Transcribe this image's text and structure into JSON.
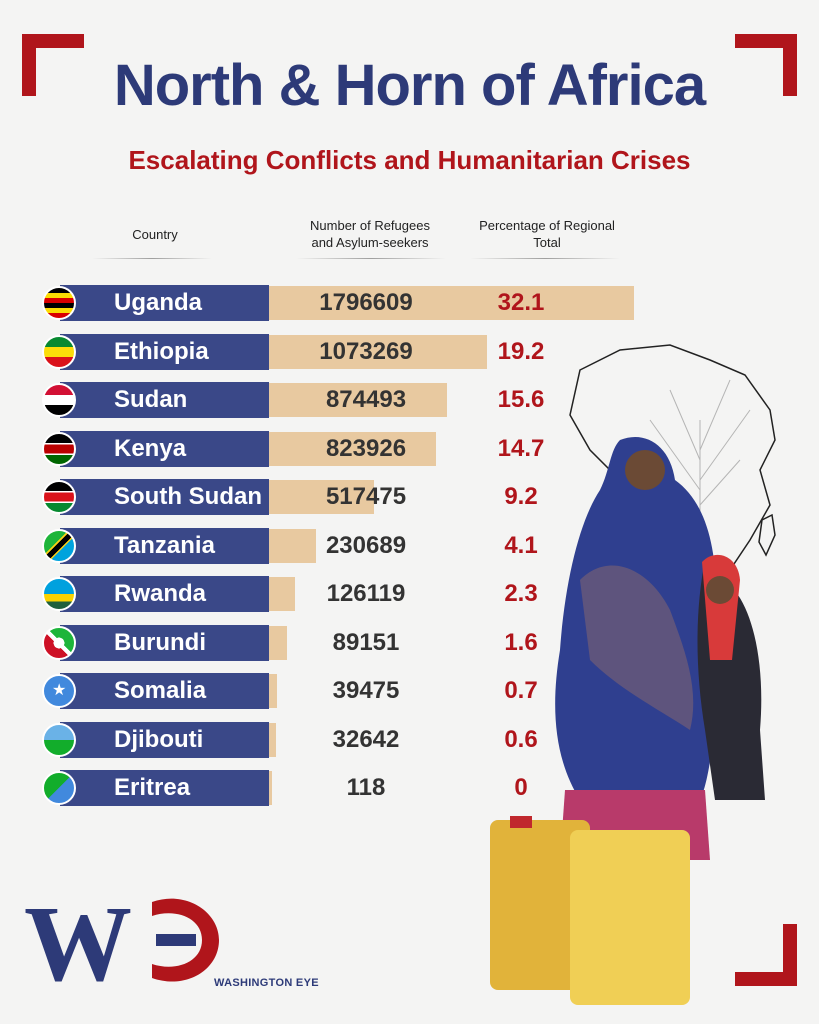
{
  "header": {
    "title": "North & Horn of Africa",
    "subtitle": "Escalating Conflicts and Humanitarian Crises"
  },
  "table": {
    "columns": [
      "Country",
      "Number of Refugees and Asylum-seekers",
      "Percentage of Regional Total"
    ],
    "column_lines": {
      "refugees": [
        "Number of Refugees",
        "and Asylum-seekers"
      ],
      "percentage": [
        "Percentage of Regional",
        "Total"
      ]
    }
  },
  "chart_data": {
    "type": "bar",
    "title": "North & Horn of Africa",
    "subtitle": "Escalating Conflicts and Humanitarian Crises",
    "xlabel": "Number of Refugees and Asylum-seekers",
    "ylabel": "Country",
    "categories": [
      "Uganda",
      "Ethiopia",
      "Sudan",
      "Kenya",
      "South Sudan",
      "Tanzania",
      "Rwanda",
      "Burundi",
      "Somalia",
      "Djibouti",
      "Eritrea"
    ],
    "values": [
      1796609,
      1073269,
      874493,
      823926,
      517475,
      230689,
      126119,
      89151,
      39475,
      32642,
      118
    ],
    "percentages": [
      "32.1",
      "19.2",
      "15.6",
      "14.7",
      "9.2",
      "4.1",
      "2.3",
      "1.6",
      "0.7",
      "0.6",
      "0"
    ],
    "value_labels": [
      "1796609",
      "1073269",
      "874493",
      "823926",
      "517475",
      "230689",
      "126119",
      "89151",
      "39475",
      "32642",
      "118"
    ],
    "xlim": [
      0,
      1796609
    ]
  },
  "flags": [
    "uganda-flag-icon",
    "ethiopia-flag-icon",
    "sudan-flag-icon",
    "kenya-flag-icon",
    "south-sudan-flag-icon",
    "tanzania-flag-icon",
    "rwanda-flag-icon",
    "burundi-flag-icon",
    "somalia-flag-icon",
    "djibouti-flag-icon",
    "eritrea-flag-icon"
  ],
  "logo": {
    "text": "WASHINGTON EYE",
    "letters": "WE"
  },
  "colors": {
    "navy": "#3a4888",
    "title_blue": "#2d3a78",
    "red": "#b0151b",
    "bar": "#e8c9a0"
  }
}
